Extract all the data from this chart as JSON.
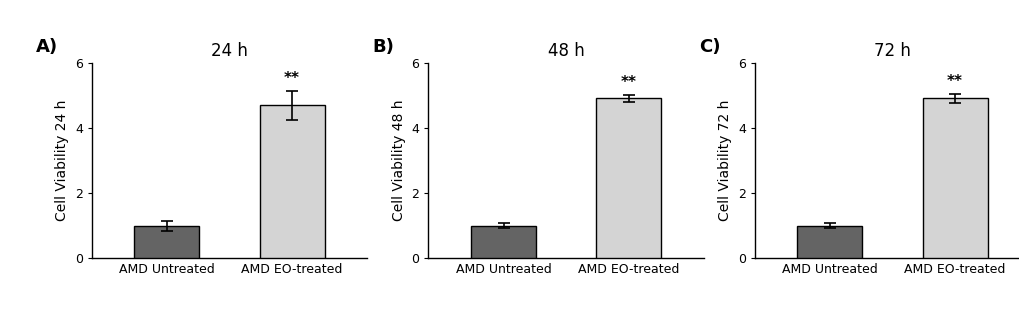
{
  "panels": [
    {
      "label": "A)",
      "title": "24 h",
      "ylabel": "Cell Viability 24 h",
      "categories": [
        "AMD Untreated",
        "AMD EO-treated"
      ],
      "values": [
        1.0,
        4.7
      ],
      "errors": [
        0.15,
        0.45
      ],
      "bar_colors": [
        "#646464",
        "#d4d4d4"
      ],
      "significance": "**",
      "sig_bar_index": 1,
      "ylim": [
        0,
        6
      ],
      "yticks": [
        0,
        2,
        4,
        6
      ]
    },
    {
      "label": "B)",
      "title": "48 h",
      "ylabel": "Cell Viability 48 h",
      "categories": [
        "AMD Untreated",
        "AMD EO-treated"
      ],
      "values": [
        1.0,
        4.92
      ],
      "errors": [
        0.07,
        0.11
      ],
      "bar_colors": [
        "#646464",
        "#d4d4d4"
      ],
      "significance": "**",
      "sig_bar_index": 1,
      "ylim": [
        0,
        6
      ],
      "yticks": [
        0,
        2,
        4,
        6
      ]
    },
    {
      "label": "C)",
      "title": "72 h",
      "ylabel": "Cell Viability 72 h",
      "categories": [
        "AMD Untreated",
        "AMD EO-treated"
      ],
      "values": [
        1.0,
        4.92
      ],
      "errors": [
        0.07,
        0.14
      ],
      "bar_colors": [
        "#646464",
        "#d4d4d4"
      ],
      "significance": "**",
      "sig_bar_index": 1,
      "ylim": [
        0,
        6
      ],
      "yticks": [
        0,
        2,
        4,
        6
      ]
    }
  ],
  "background_color": "#ffffff",
  "bar_width": 0.52,
  "bar_edge_color": "#000000",
  "bar_edge_width": 1.0,
  "error_color": "#000000",
  "error_capsize": 4,
  "error_linewidth": 1.2,
  "tick_fontsize": 9,
  "label_fontsize": 10,
  "title_fontsize": 12,
  "panel_label_fontsize": 13,
  "sig_fontsize": 11
}
